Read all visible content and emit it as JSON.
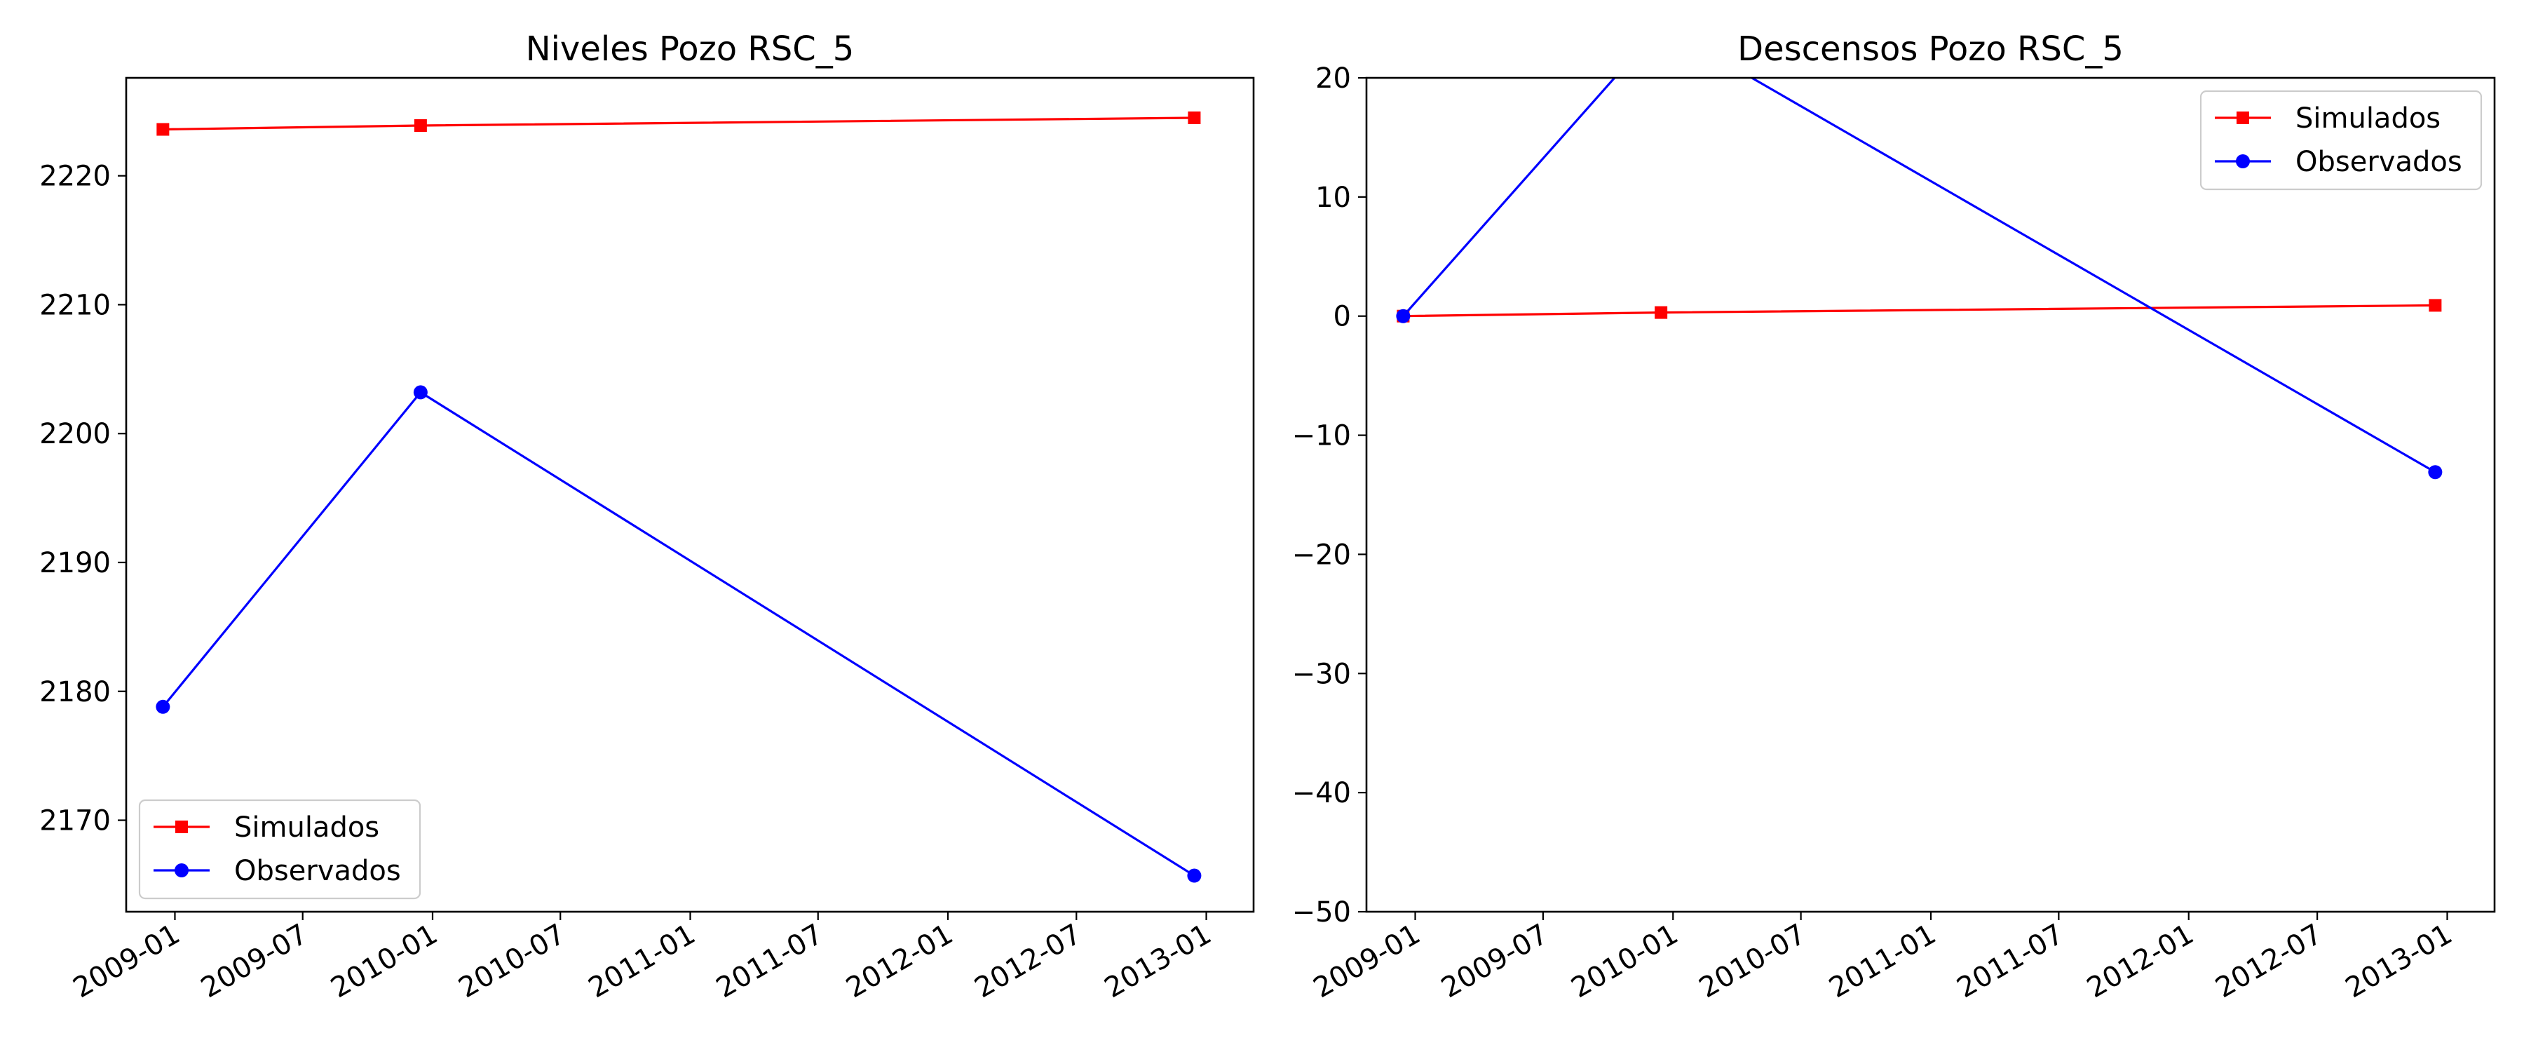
{
  "chart_data": [
    {
      "type": "line",
      "title": "Niveles Pozo RSC_5",
      "xlabel": "",
      "ylabel": "",
      "x_type": "date",
      "xlim": [
        "2008-10-24",
        "2013-03-09"
      ],
      "ylim": [
        2162.9,
        2227.6
      ],
      "xticks": [
        "2009-01",
        "2009-07",
        "2010-01",
        "2010-07",
        "2011-01",
        "2011-07",
        "2012-01",
        "2012-07",
        "2013-01"
      ],
      "yticks": [
        2170,
        2180,
        2190,
        2200,
        2210,
        2220
      ],
      "grid": false,
      "legend_position": "lower-left",
      "series": [
        {
          "name": "Simulados",
          "color": "#ff0000",
          "marker": "square",
          "x": [
            "2008-12-15",
            "2009-12-15",
            "2012-12-15"
          ],
          "y": [
            2223.6,
            2223.9,
            2224.5
          ]
        },
        {
          "name": "Observados",
          "color": "#0000ff",
          "marker": "circle",
          "x": [
            "2008-12-15",
            "2009-12-15",
            "2012-12-15"
          ],
          "y": [
            2178.8,
            2203.2,
            2165.7
          ]
        }
      ]
    },
    {
      "type": "line",
      "title": "Descensos Pozo RSC_5",
      "xlabel": "",
      "ylabel": "",
      "x_type": "date",
      "xlim": [
        "2008-10-24",
        "2013-03-09"
      ],
      "ylim": [
        -50,
        20
      ],
      "xticks": [
        "2009-01",
        "2009-07",
        "2010-01",
        "2010-07",
        "2011-01",
        "2011-07",
        "2012-01",
        "2012-07",
        "2013-01"
      ],
      "yticks": [
        -50,
        -40,
        -30,
        -20,
        -10,
        0,
        10,
        20
      ],
      "grid": false,
      "legend_position": "upper-right",
      "series": [
        {
          "name": "Simulados",
          "color": "#ff0000",
          "marker": "square",
          "x": [
            "2008-12-15",
            "2009-12-15",
            "2012-12-15"
          ],
          "y": [
            0,
            0.3,
            0.9
          ]
        },
        {
          "name": "Observados",
          "color": "#0000ff",
          "marker": "circle",
          "x": [
            "2008-12-15",
            "2009-12-15",
            "2012-12-15"
          ],
          "y": [
            0,
            24.4,
            -13.1
          ]
        }
      ]
    }
  ]
}
